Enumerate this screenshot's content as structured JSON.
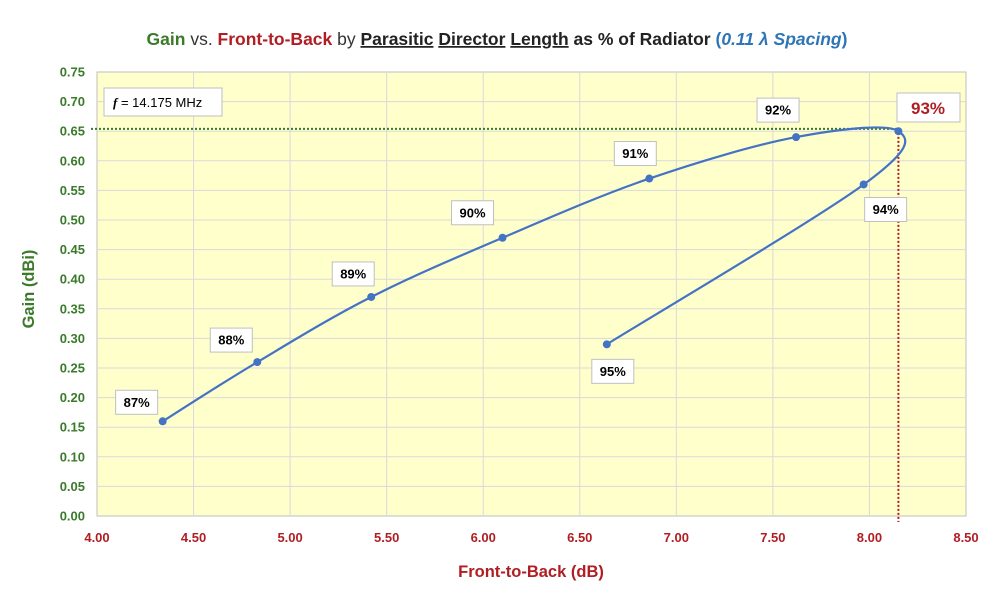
{
  "chart_data": {
    "type": "line",
    "title": {
      "parts": [
        {
          "text": "Gain",
          "color": "#3a7a2a",
          "underline": false,
          "italic": false
        },
        {
          "text": " vs. ",
          "color": "#333333",
          "underline": false,
          "italic": false,
          "normal": true
        },
        {
          "text": "Front-to-Back",
          "color": "#b01e23",
          "underline": false,
          "italic": false
        },
        {
          "text": " by ",
          "color": "#333333",
          "underline": false,
          "italic": false,
          "normal": true
        },
        {
          "text": "Parasitic",
          "color": "#222222",
          "underline": true,
          "italic": false
        },
        {
          "text": " ",
          "color": "#222222",
          "underline": false,
          "italic": false
        },
        {
          "text": "Director",
          "color": "#222222",
          "underline": true,
          "italic": false
        },
        {
          "text": " ",
          "color": "#222222",
          "underline": false,
          "italic": false
        },
        {
          "text": "Length",
          "color": "#222222",
          "underline": true,
          "italic": false
        },
        {
          "text": " as % of Radiator  ",
          "color": "#222222",
          "underline": false,
          "italic": false
        },
        {
          "text": "(",
          "color": "#2e75b6",
          "underline": false,
          "italic": false
        },
        {
          "text": "0.11 λ  Spacing",
          "color": "#2e75b6",
          "underline": false,
          "italic": true
        },
        {
          "text": ")",
          "color": "#2e75b6",
          "underline": false,
          "italic": false
        }
      ]
    },
    "xlabel": "Front-to-Back (dB)",
    "ylabel": "Gain (dBi)",
    "xlim": [
      4.0,
      8.5
    ],
    "ylim": [
      0.0,
      0.75
    ],
    "x_ticks": [
      "4.00",
      "4.50",
      "5.00",
      "5.50",
      "6.00",
      "6.50",
      "7.00",
      "7.50",
      "8.00",
      "8.50"
    ],
    "y_ticks": [
      "0.00",
      "0.05",
      "0.10",
      "0.15",
      "0.20",
      "0.25",
      "0.30",
      "0.35",
      "0.40",
      "0.45",
      "0.50",
      "0.55",
      "0.60",
      "0.65",
      "0.70",
      "0.75"
    ],
    "grid": true,
    "plot_background": "#ffffcc",
    "series": [
      {
        "color": "#4472c4",
        "smooth": true,
        "points": [
          {
            "x": 4.34,
            "y": 0.16,
            "label": "87%"
          },
          {
            "x": 4.83,
            "y": 0.26,
            "label": "88%"
          },
          {
            "x": 5.42,
            "y": 0.37,
            "label": "89%"
          },
          {
            "x": 6.1,
            "y": 0.47,
            "label": "90%"
          },
          {
            "x": 6.86,
            "y": 0.57,
            "label": "91%"
          },
          {
            "x": 7.62,
            "y": 0.64,
            "label": "92%"
          },
          {
            "x": 8.15,
            "y": 0.65,
            "label": "93%"
          },
          {
            "x": 7.97,
            "y": 0.56,
            "label": "94%"
          },
          {
            "x": 6.64,
            "y": 0.29,
            "label": "95%"
          }
        ]
      }
    ],
    "annotations": {
      "frequency": {
        "f_symbol": "f",
        "text": " = 14.175 MHz"
      },
      "peak": {
        "label": "93%",
        "x": 8.15,
        "y": 0.654,
        "color": "#b01e23",
        "hline_color": "#3a7a2a",
        "vline_color": "#b01e23"
      }
    }
  }
}
